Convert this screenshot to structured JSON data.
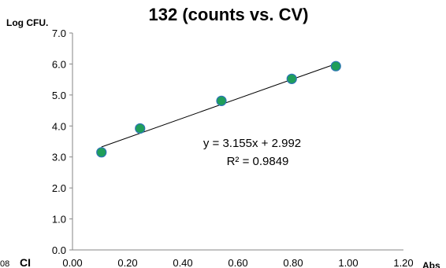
{
  "chart_data": {
    "type": "scatter",
    "title": "132 (counts vs. CV)",
    "xlabel": "Abs",
    "ylabel": "Log CFU.",
    "xlim": [
      0.0,
      1.2
    ],
    "ylim": [
      0.0,
      7.0
    ],
    "xticks": [
      "0.00",
      "0.20",
      "0.40",
      "0.60",
      "0.80",
      "1.00",
      "1.20"
    ],
    "yticks": [
      "0.0",
      "1.0",
      "2.0",
      "3.0",
      "4.0",
      "5.0",
      "6.0",
      "7.0"
    ],
    "grid": false,
    "legend": "none",
    "series": [
      {
        "x": [
          0.105,
          0.245,
          0.54,
          0.795,
          0.955
        ],
        "y": [
          3.15,
          3.92,
          4.81,
          5.52,
          5.93
        ]
      }
    ],
    "trendline": {
      "slope": 3.155,
      "intercept": 2.992,
      "x_range": [
        0.105,
        0.955
      ],
      "equation_text": "y = 3.155x + 2.992",
      "r2_text": "R² = 0.9849"
    },
    "edge_texts": {
      "left_fragment": "08",
      "ci_label": "CI"
    },
    "colors": {
      "marker_fill": "#1f9e5a",
      "marker_stroke": "#2e75b6",
      "trendline": "#000000",
      "axis": "#868686"
    }
  }
}
